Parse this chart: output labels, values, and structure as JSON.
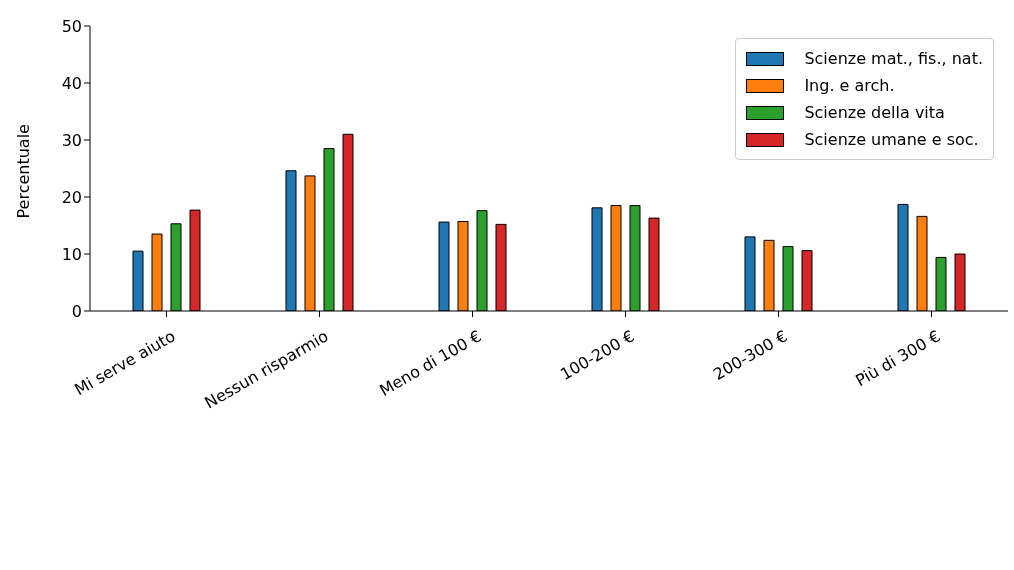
{
  "chart_data": {
    "type": "bar",
    "ylabel": "Percentuale",
    "categories": [
      "Mi serve aiuto",
      "Nessun risparmio",
      "Meno di 100 €",
      "100-200 €",
      "200-300 €",
      "Più di 300 €"
    ],
    "series": [
      {
        "name": "Scienze mat., fis., nat.",
        "color": "#1f77b4",
        "values": [
          10.5,
          24.6,
          15.6,
          18.1,
          13.0,
          18.7
        ]
      },
      {
        "name": "Ing. e arch.",
        "color": "#ff7f0e",
        "values": [
          13.5,
          23.7,
          15.7,
          18.5,
          12.4,
          16.6
        ]
      },
      {
        "name": "Scienze della vita",
        "color": "#2ca02c",
        "values": [
          15.3,
          28.5,
          17.6,
          18.5,
          11.3,
          9.4
        ]
      },
      {
        "name": "Scienze umane e soc.",
        "color": "#d62728",
        "values": [
          17.7,
          31.0,
          15.2,
          16.3,
          10.6,
          10.0
        ]
      }
    ],
    "ylim": [
      0,
      50
    ],
    "yticks": [
      0,
      10,
      20,
      30,
      40,
      50
    ],
    "grid": false,
    "legend": "top right"
  }
}
